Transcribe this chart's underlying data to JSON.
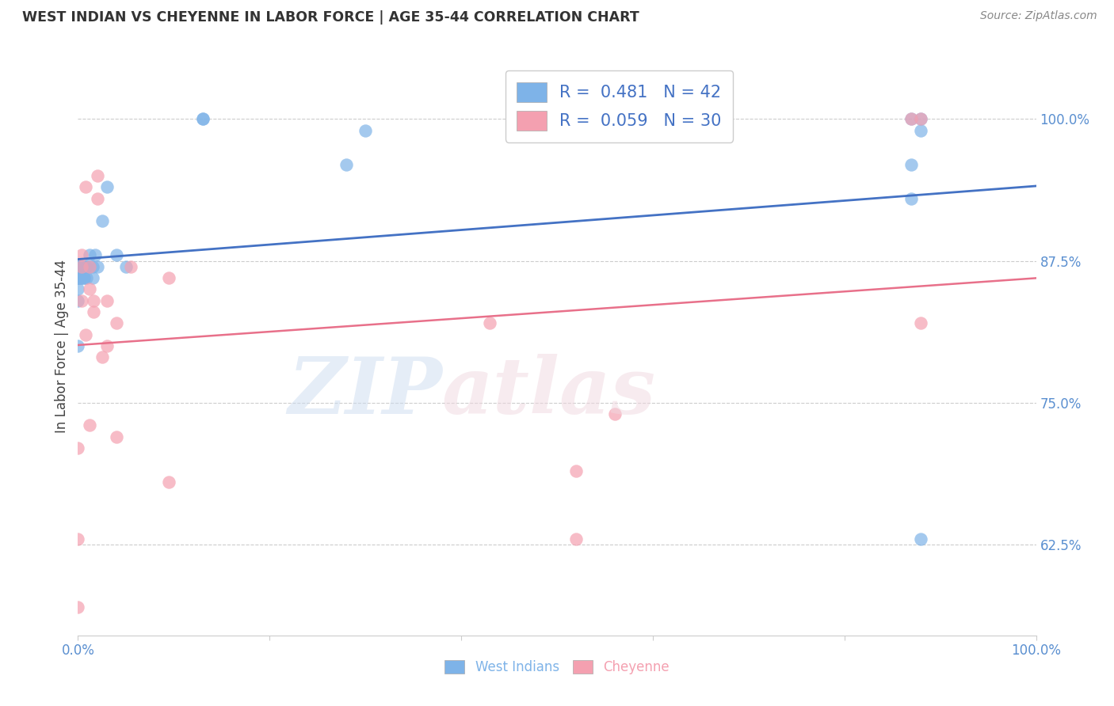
{
  "title": "WEST INDIAN VS CHEYENNE IN LABOR FORCE | AGE 35-44 CORRELATION CHART",
  "source": "Source: ZipAtlas.com",
  "ylabel": "In Labor Force | Age 35-44",
  "ytick_labels": [
    "62.5%",
    "75.0%",
    "87.5%",
    "100.0%"
  ],
  "ytick_values": [
    0.625,
    0.75,
    0.875,
    1.0
  ],
  "west_indian_R": 0.481,
  "west_indian_N": 42,
  "cheyenne_R": 0.059,
  "cheyenne_N": 30,
  "west_indian_color": "#7eb3e8",
  "cheyenne_color": "#f4a0b0",
  "west_indian_line_color": "#4472c4",
  "cheyenne_line_color": "#e8708a",
  "xlim": [
    0.0,
    1.0
  ],
  "ylim": [
    0.545,
    1.055
  ],
  "west_indian_x": [
    0.0,
    0.0,
    0.0,
    0.0,
    0.0,
    0.0,
    0.0,
    0.0,
    0.0,
    0.0,
    0.003,
    0.003,
    0.003,
    0.003,
    0.003,
    0.006,
    0.006,
    0.006,
    0.006,
    0.009,
    0.009,
    0.009,
    0.012,
    0.012,
    0.015,
    0.015,
    0.018,
    0.02,
    0.025,
    0.03,
    0.04,
    0.05,
    0.13,
    0.13,
    0.28,
    0.3,
    0.87,
    0.88,
    0.87,
    0.88,
    0.87,
    0.88
  ],
  "west_indian_y": [
    0.87,
    0.87,
    0.87,
    0.87,
    0.86,
    0.86,
    0.86,
    0.85,
    0.84,
    0.8,
    0.87,
    0.87,
    0.86,
    0.86,
    0.86,
    0.87,
    0.87,
    0.86,
    0.86,
    0.87,
    0.87,
    0.86,
    0.88,
    0.87,
    0.87,
    0.86,
    0.88,
    0.87,
    0.91,
    0.94,
    0.88,
    0.87,
    1.0,
    1.0,
    0.96,
    0.99,
    1.0,
    1.0,
    0.96,
    0.99,
    0.93,
    0.63
  ],
  "cheyenne_x": [
    0.0,
    0.0,
    0.0,
    0.004,
    0.004,
    0.004,
    0.008,
    0.008,
    0.012,
    0.012,
    0.012,
    0.016,
    0.016,
    0.02,
    0.02,
    0.025,
    0.03,
    0.03,
    0.04,
    0.04,
    0.055,
    0.095,
    0.095,
    0.43,
    0.52,
    0.52,
    0.56,
    0.87,
    0.88,
    0.88
  ],
  "cheyenne_y": [
    0.57,
    0.63,
    0.71,
    0.88,
    0.87,
    0.84,
    0.94,
    0.81,
    0.87,
    0.85,
    0.73,
    0.84,
    0.83,
    0.95,
    0.93,
    0.79,
    0.84,
    0.8,
    0.82,
    0.72,
    0.87,
    0.86,
    0.68,
    0.82,
    0.69,
    0.63,
    0.74,
    1.0,
    1.0,
    0.82
  ]
}
